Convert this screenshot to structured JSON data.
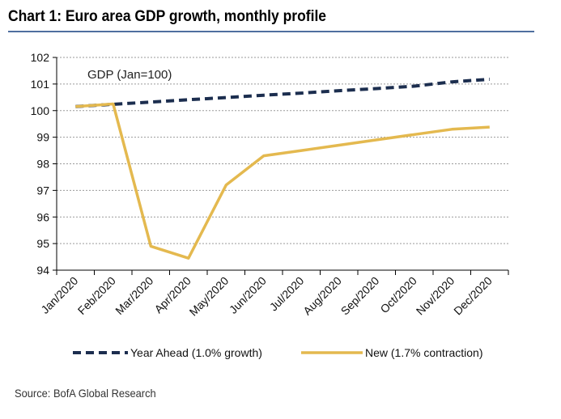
{
  "title": "Chart 1: Euro area GDP growth, monthly profile",
  "source": "Source: BofA Global Research",
  "colors": {
    "year_ahead": "#1c2e4f",
    "new": "#e4b94f",
    "grid": "#9a9a9a",
    "axis": "#000000",
    "title_rule": "#4f6f9f"
  },
  "chart_data": {
    "type": "line",
    "title": "Chart 1: Euro area GDP growth, monthly profile",
    "annotation": "GDP (Jan=100)",
    "categories": [
      "Jan/2020",
      "Feb/2020",
      "Mar/2020",
      "Apr/2020",
      "May/2020",
      "Jun/2020",
      "Jul/2020",
      "Aug/2020",
      "Sep/2020",
      "Oct/2020",
      "Nov/2020",
      "Dec/2020"
    ],
    "ylim": [
      94,
      102
    ],
    "yticks": [
      94,
      95,
      96,
      97,
      98,
      99,
      100,
      101,
      102
    ],
    "grid": true,
    "legend_position": "bottom",
    "series": [
      {
        "name": "Year Ahead (1.0% growth)",
        "style": "dashed",
        "values": [
          100.15,
          100.24,
          100.32,
          100.41,
          100.49,
          100.58,
          100.66,
          100.75,
          100.83,
          100.92,
          101.08,
          101.18
        ]
      },
      {
        "name": "New (1.7% contraction)",
        "style": "solid",
        "values": [
          100.15,
          100.25,
          94.9,
          94.45,
          97.2,
          98.3,
          98.5,
          98.7,
          98.9,
          99.1,
          99.3,
          99.38
        ]
      }
    ]
  }
}
